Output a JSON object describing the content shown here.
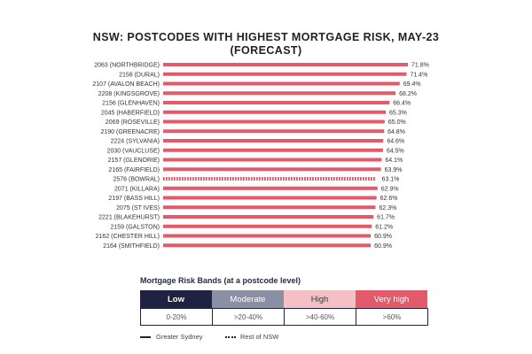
{
  "chart_data": {
    "type": "bar",
    "orientation": "horizontal",
    "title_lines": [
      "NSW: POSTCODES WITH HIGHEST MORTGAGE RISK, MAY-23",
      "(FORECAST)"
    ],
    "categories": [
      "2063 (NORTHBRIDGE)",
      "2158 (DURAL)",
      "2107 (AVALON BEACH)",
      "2208 (KINGSGROVE)",
      "2156 (GLENHAVEN)",
      "2045 (HABERFIELD)",
      "2069 (ROSEVILLE)",
      "2190 (GREENACRE)",
      "2224 (SYLVANIA)",
      "2030 (VAUCLUSE)",
      "2157 (GLENORIE)",
      "2165 (FAIRFIELD)",
      "2576 (BOWRAL)",
      "2071 (KILLARA)",
      "2197 (BASS HILL)",
      "2075 (ST IVES)",
      "2221 (BLAKEHURST)",
      "2159 (GALSTON)",
      "2162 (CHESTER HILL)",
      "2164 (SMITHFIELD)"
    ],
    "values": [
      71.8,
      71.4,
      69.4,
      68.2,
      66.4,
      65.3,
      65.0,
      64.8,
      64.6,
      64.5,
      64.1,
      63.9,
      63.1,
      62.9,
      62.6,
      62.3,
      61.7,
      61.2,
      60.9,
      60.9
    ],
    "value_labels": [
      "71.8%",
      "71.4%",
      "69.4%",
      "68.2%",
      "66.4%",
      "65.3%",
      "65.0%",
      "64.8%",
      "64.6%",
      "64.5%",
      "64.1%",
      "63.9%",
      "63.1%",
      "62.9%",
      "62.6%",
      "62.3%",
      "61.7%",
      "61.2%",
      "60.9%",
      "60.9%"
    ],
    "region": [
      "Greater Sydney",
      "Greater Sydney",
      "Greater Sydney",
      "Greater Sydney",
      "Greater Sydney",
      "Greater Sydney",
      "Greater Sydney",
      "Greater Sydney",
      "Greater Sydney",
      "Greater Sydney",
      "Greater Sydney",
      "Greater Sydney",
      "Rest of NSW",
      "Greater Sydney",
      "Greater Sydney",
      "Greater Sydney",
      "Greater Sydney",
      "Greater Sydney",
      "Greater Sydney",
      "Greater Sydney"
    ],
    "unit": "%",
    "bar_color": "#e35a6a",
    "xlim": [
      0,
      71.8
    ],
    "grid": false
  },
  "legend": {
    "title": "Mortgage Risk Bands (at a postcode level)",
    "bands": [
      {
        "label": "Low",
        "range": "0-20%",
        "color": "#1f2242"
      },
      {
        "label": "Moderate",
        "range": ">20-40%",
        "color": "#8b8fa3"
      },
      {
        "label": "High",
        "range": ">40-60%",
        "color": "#f4bfc5"
      },
      {
        "label": "Very high",
        "range": ">60%",
        "color": "#e35a6a"
      }
    ],
    "line_keys": {
      "solid": "Greater Sydney",
      "dotted": "Rest of NSW"
    }
  }
}
